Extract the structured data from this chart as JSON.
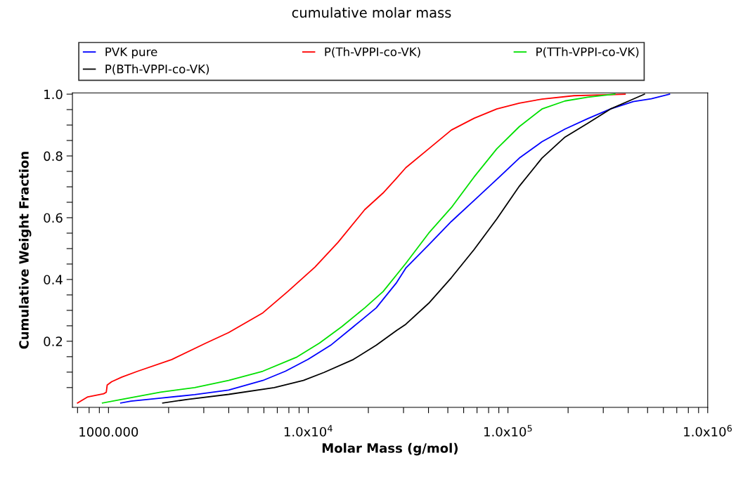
{
  "chart_data": {
    "type": "line",
    "title": "cumulative molar mass",
    "xlabel": "Molar Mass (g/mol)",
    "ylabel": "Cumulative Weight Fraction",
    "log": "x",
    "grid": false,
    "legend": "top",
    "marker": "none",
    "line_style": "solid",
    "xlim": [
      660,
      1000000
    ],
    "ylim": [
      -0.014,
      1.004
    ],
    "xticks": [
      {
        "value": 700,
        "label": null
      },
      {
        "value": 800,
        "label": null
      },
      {
        "value": 900,
        "label": null
      },
      {
        "value": 1000,
        "label": "1000.000"
      },
      {
        "value": 2000,
        "label": null
      },
      {
        "value": 3000,
        "label": null
      },
      {
        "value": 4000,
        "label": null
      },
      {
        "value": 5000,
        "label": null
      },
      {
        "value": 6000,
        "label": null
      },
      {
        "value": 7000,
        "label": null
      },
      {
        "value": 8000,
        "label": null
      },
      {
        "value": 9000,
        "label": null
      },
      {
        "value": 10000,
        "label": "1.0x10$^{4}$"
      },
      {
        "value": 20000,
        "label": null
      },
      {
        "value": 30000,
        "label": null
      },
      {
        "value": 40000,
        "label": null
      },
      {
        "value": 50000,
        "label": null
      },
      {
        "value": 60000,
        "label": null
      },
      {
        "value": 70000,
        "label": null
      },
      {
        "value": 80000,
        "label": null
      },
      {
        "value": 90000,
        "label": null
      },
      {
        "value": 100000,
        "label": "1.0x10$^{5}$"
      },
      {
        "value": 200000,
        "label": null
      },
      {
        "value": 300000,
        "label": null
      },
      {
        "value": 400000,
        "label": null
      },
      {
        "value": 500000,
        "label": null
      },
      {
        "value": 600000,
        "label": null
      },
      {
        "value": 700000,
        "label": null
      },
      {
        "value": 800000,
        "label": null
      },
      {
        "value": 900000,
        "label": null
      },
      {
        "value": 1000000,
        "label": "1.0x10$^{6}$"
      }
    ],
    "yticks": [
      {
        "value": 0.05,
        "label": null
      },
      {
        "value": 0.1,
        "label": null
      },
      {
        "value": 0.15,
        "label": null
      },
      {
        "value": 0.2,
        "label": "0.2"
      },
      {
        "value": 0.25,
        "label": null
      },
      {
        "value": 0.3,
        "label": null
      },
      {
        "value": 0.35,
        "label": null
      },
      {
        "value": 0.4,
        "label": "0.4"
      },
      {
        "value": 0.45,
        "label": null
      },
      {
        "value": 0.5,
        "label": null
      },
      {
        "value": 0.55,
        "label": null
      },
      {
        "value": 0.6,
        "label": "0.6"
      },
      {
        "value": 0.65,
        "label": null
      },
      {
        "value": 0.7,
        "label": null
      },
      {
        "value": 0.75,
        "label": null
      },
      {
        "value": 0.8,
        "label": "0.8"
      },
      {
        "value": 0.85,
        "label": null
      },
      {
        "value": 0.9,
        "label": null
      },
      {
        "value": 0.95,
        "label": null
      },
      {
        "value": 1.0,
        "label": "1.0"
      }
    ],
    "series": [
      {
        "name": "PVK pure",
        "color": "#0000ff",
        "x": [
          1152,
          1296,
          1820,
          2700,
          3996,
          5926,
          7690,
          9960,
          12950,
          16820,
          21900,
          27700,
          30800,
          40100,
          52100,
          67700,
          87900,
          114000,
          148000,
          193000,
          251000,
          326000,
          424000,
          522000,
          644000
        ],
        "values": [
          0.0,
          0.006,
          0.016,
          0.027,
          0.042,
          0.073,
          0.103,
          0.141,
          0.187,
          0.247,
          0.308,
          0.39,
          0.437,
          0.512,
          0.588,
          0.656,
          0.724,
          0.793,
          0.846,
          0.887,
          0.921,
          0.952,
          0.976,
          0.985,
          1.0
        ]
      },
      {
        "name": "P(Th-VPPI-co-VK)",
        "color": "#ff0000",
        "x": [
          700,
          788,
          946,
          975,
          985,
          1037,
          1167,
          1402,
          2076,
          3074,
          3996,
          5926,
          7894,
          10800,
          14090,
          19180,
          23700,
          27700,
          30800,
          40100,
          52100,
          67700,
          87900,
          114000,
          148000,
          214000,
          386000
        ],
        "values": [
          0.0,
          0.02,
          0.03,
          0.035,
          0.058,
          0.069,
          0.084,
          0.103,
          0.141,
          0.194,
          0.228,
          0.292,
          0.361,
          0.44,
          0.52,
          0.626,
          0.68,
          0.728,
          0.762,
          0.823,
          0.884,
          0.922,
          0.952,
          0.971,
          0.984,
          0.995,
          1.0
        ]
      },
      {
        "name": "P(TTh-VPPI-co-VK)",
        "color": "#00e000",
        "x": [
          933,
          1167,
          1820,
          2700,
          3996,
          5926,
          8780,
          11380,
          14700,
          19180,
          23700,
          30800,
          40100,
          52100,
          67700,
          87900,
          114000,
          148000,
          193000,
          251000,
          343000
        ],
        "values": [
          0.0,
          0.012,
          0.035,
          0.05,
          0.073,
          0.103,
          0.149,
          0.194,
          0.247,
          0.308,
          0.361,
          0.452,
          0.55,
          0.633,
          0.732,
          0.823,
          0.895,
          0.952,
          0.978,
          0.99,
          1.0
        ]
      },
      {
        "name": "P(BTh-VPPI-co-VK)",
        "color": "#000000",
        "x": [
          1870,
          2495,
          3996,
          6760,
          9460,
          12000,
          16820,
          21900,
          27700,
          30800,
          40100,
          52100,
          67700,
          87900,
          114000,
          148000,
          193000,
          251000,
          326000,
          403000,
          482000
        ],
        "values": [
          0.0,
          0.012,
          0.028,
          0.05,
          0.073,
          0.099,
          0.141,
          0.187,
          0.235,
          0.255,
          0.323,
          0.406,
          0.497,
          0.596,
          0.702,
          0.793,
          0.861,
          0.906,
          0.952,
          0.978,
          1.0
        ]
      }
    ]
  }
}
